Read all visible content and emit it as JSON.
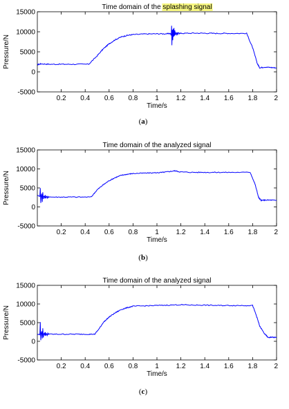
{
  "chart_data": [
    {
      "type": "line",
      "title_prefix": "Time domain of the",
      "title_highlight": "splashing signal",
      "highlight_color": "#f7f781",
      "xlabel": "Time/s",
      "ylabel": "Pressure/N",
      "xlim": [
        0,
        2
      ],
      "ylim": [
        -5000,
        15000
      ],
      "xticks": [
        "0.2",
        "0.4",
        "0.6",
        "0.8",
        "1",
        "1.2",
        "1.4",
        "1.6",
        "1.8",
        "2"
      ],
      "yticks": [
        "-5000",
        "0",
        "5000",
        "10000",
        "15000"
      ],
      "caption_open": "(",
      "caption_letter": "a",
      "caption_close": ")",
      "line_color": "#0000ff",
      "series": [
        {
          "points": [
            [
              0.0,
              1800
            ],
            [
              0.03,
              2000
            ],
            [
              0.1,
              1900
            ],
            [
              0.2,
              1900
            ],
            [
              0.3,
              1900
            ],
            [
              0.43,
              1900
            ],
            [
              0.5,
              4000
            ],
            [
              0.55,
              5700
            ],
            [
              0.6,
              7000
            ],
            [
              0.65,
              8000
            ],
            [
              0.7,
              8700
            ],
            [
              0.75,
              9100
            ],
            [
              0.8,
              9300
            ],
            [
              0.9,
              9450
            ],
            [
              1.0,
              9500
            ],
            [
              1.08,
              9500
            ],
            [
              1.12,
              9600
            ],
            [
              1.15,
              9600
            ],
            [
              1.2,
              9600
            ],
            [
              1.3,
              9650
            ],
            [
              1.4,
              9650
            ],
            [
              1.5,
              9600
            ],
            [
              1.6,
              9600
            ],
            [
              1.75,
              9600
            ],
            [
              1.8,
              6000
            ],
            [
              1.84,
              2000
            ],
            [
              1.86,
              1000
            ],
            [
              1.9,
              1200
            ],
            [
              1.95,
              1100
            ],
            [
              2.0,
              1000
            ]
          ],
          "burst": {
            "t": 1.12,
            "amp": 4000
          }
        }
      ]
    },
    {
      "type": "line",
      "title_prefix": "Time domain of the analyzed signal",
      "title_highlight": "",
      "xlabel": "Time/s",
      "ylabel": "Pressure/N",
      "xlim": [
        0,
        2
      ],
      "ylim": [
        -5000,
        15000
      ],
      "xticks": [
        "0.2",
        "0.4",
        "0.6",
        "0.8",
        "1",
        "1.2",
        "1.4",
        "1.6",
        "1.8",
        "2"
      ],
      "yticks": [
        "-5000",
        "0",
        "5000",
        "10000",
        "15000"
      ],
      "caption_open": "(",
      "caption_letter": "b",
      "caption_close": ")",
      "line_color": "#0000ff",
      "series": [
        {
          "points": [
            [
              0.0,
              3000
            ],
            [
              0.05,
              2700
            ],
            [
              0.1,
              2600
            ],
            [
              0.2,
              2600
            ],
            [
              0.3,
              2600
            ],
            [
              0.45,
              2600
            ],
            [
              0.5,
              4500
            ],
            [
              0.55,
              5800
            ],
            [
              0.6,
              6900
            ],
            [
              0.65,
              7700
            ],
            [
              0.7,
              8300
            ],
            [
              0.75,
              8600
            ],
            [
              0.8,
              8800
            ],
            [
              0.9,
              8900
            ],
            [
              1.0,
              9000
            ],
            [
              1.05,
              9100
            ],
            [
              1.1,
              9300
            ],
            [
              1.15,
              9500
            ],
            [
              1.2,
              9200
            ],
            [
              1.3,
              9100
            ],
            [
              1.4,
              9100
            ],
            [
              1.5,
              9100
            ],
            [
              1.6,
              9100
            ],
            [
              1.78,
              9100
            ],
            [
              1.82,
              6000
            ],
            [
              1.85,
              2500
            ],
            [
              1.87,
              1700
            ],
            [
              1.9,
              1800
            ],
            [
              1.95,
              1800
            ],
            [
              2.0,
              1700
            ]
          ],
          "burst": {
            "t": 0.03,
            "amp": 3000
          }
        }
      ]
    },
    {
      "type": "line",
      "title_prefix": "Time domain of the analyzed signal",
      "title_highlight": "",
      "xlabel": "Time/s",
      "ylabel": "Pressure/N",
      "xlim": [
        0,
        2
      ],
      "ylim": [
        -5000,
        15000
      ],
      "xticks": [
        "0.2",
        "0.4",
        "0.6",
        "0.8",
        "1",
        "1.2",
        "1.4",
        "1.6",
        "1.8",
        "2"
      ],
      "yticks": [
        "-5000",
        "0",
        "5000",
        "10000",
        "15000"
      ],
      "caption_open": "(",
      "caption_letter": "c",
      "caption_close": ")",
      "line_color": "#0000ff",
      "series": [
        {
          "points": [
            [
              0.0,
              1800
            ],
            [
              0.05,
              1900
            ],
            [
              0.1,
              1900
            ],
            [
              0.2,
              1900
            ],
            [
              0.3,
              1900
            ],
            [
              0.4,
              1900
            ],
            [
              0.48,
              1900
            ],
            [
              0.52,
              3500
            ],
            [
              0.55,
              5000
            ],
            [
              0.6,
              6500
            ],
            [
              0.65,
              7600
            ],
            [
              0.7,
              8500
            ],
            [
              0.75,
              9000
            ],
            [
              0.8,
              9400
            ],
            [
              0.9,
              9500
            ],
            [
              1.0,
              9600
            ],
            [
              1.1,
              9700
            ],
            [
              1.2,
              9800
            ],
            [
              1.3,
              9700
            ],
            [
              1.4,
              9700
            ],
            [
              1.5,
              9600
            ],
            [
              1.6,
              9600
            ],
            [
              1.7,
              9600
            ],
            [
              1.8,
              9600
            ],
            [
              1.83,
              7000
            ],
            [
              1.86,
              4000
            ],
            [
              1.9,
              2000
            ],
            [
              1.93,
              1000
            ],
            [
              1.96,
              1100
            ],
            [
              2.0,
              1000
            ]
          ],
          "burst": {
            "t": 0.03,
            "amp": 3500
          }
        }
      ]
    }
  ]
}
